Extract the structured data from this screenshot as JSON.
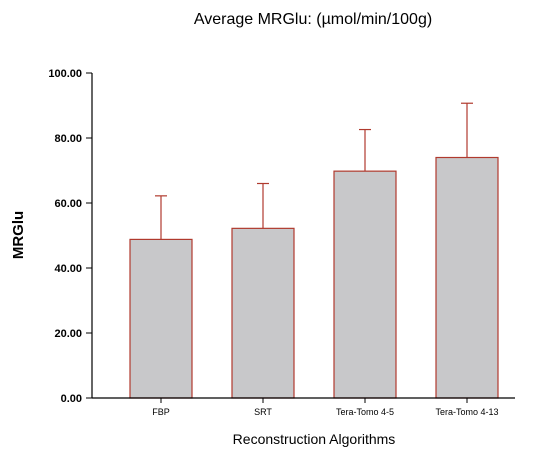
{
  "chart_data": {
    "type": "bar",
    "title": "Average MRGlu: (µmol/min/100g)",
    "xlabel": "Reconstruction Algorithms",
    "ylabel": "MRGlu",
    "categories": [
      "FBP",
      "SRT",
      "Tera-Tomo 4-5",
      "Tera-Tomo 4-13"
    ],
    "series": [
      {
        "values": [
          48.8,
          52.2,
          69.8,
          74.0
        ],
        "error_plus": [
          13.4,
          13.8,
          12.8,
          16.7
        ]
      }
    ],
    "ylim": [
      0,
      100
    ],
    "yticks": [
      "0.00",
      "20.00",
      "40.00",
      "60.00",
      "80.00",
      "100.00"
    ],
    "grid": false,
    "legend": "none",
    "colors": {
      "bar_fill": "#c8c8ca",
      "bar_stroke": "#b03a2e",
      "error_bar": "#b03a2e",
      "axis": "#000000"
    }
  }
}
